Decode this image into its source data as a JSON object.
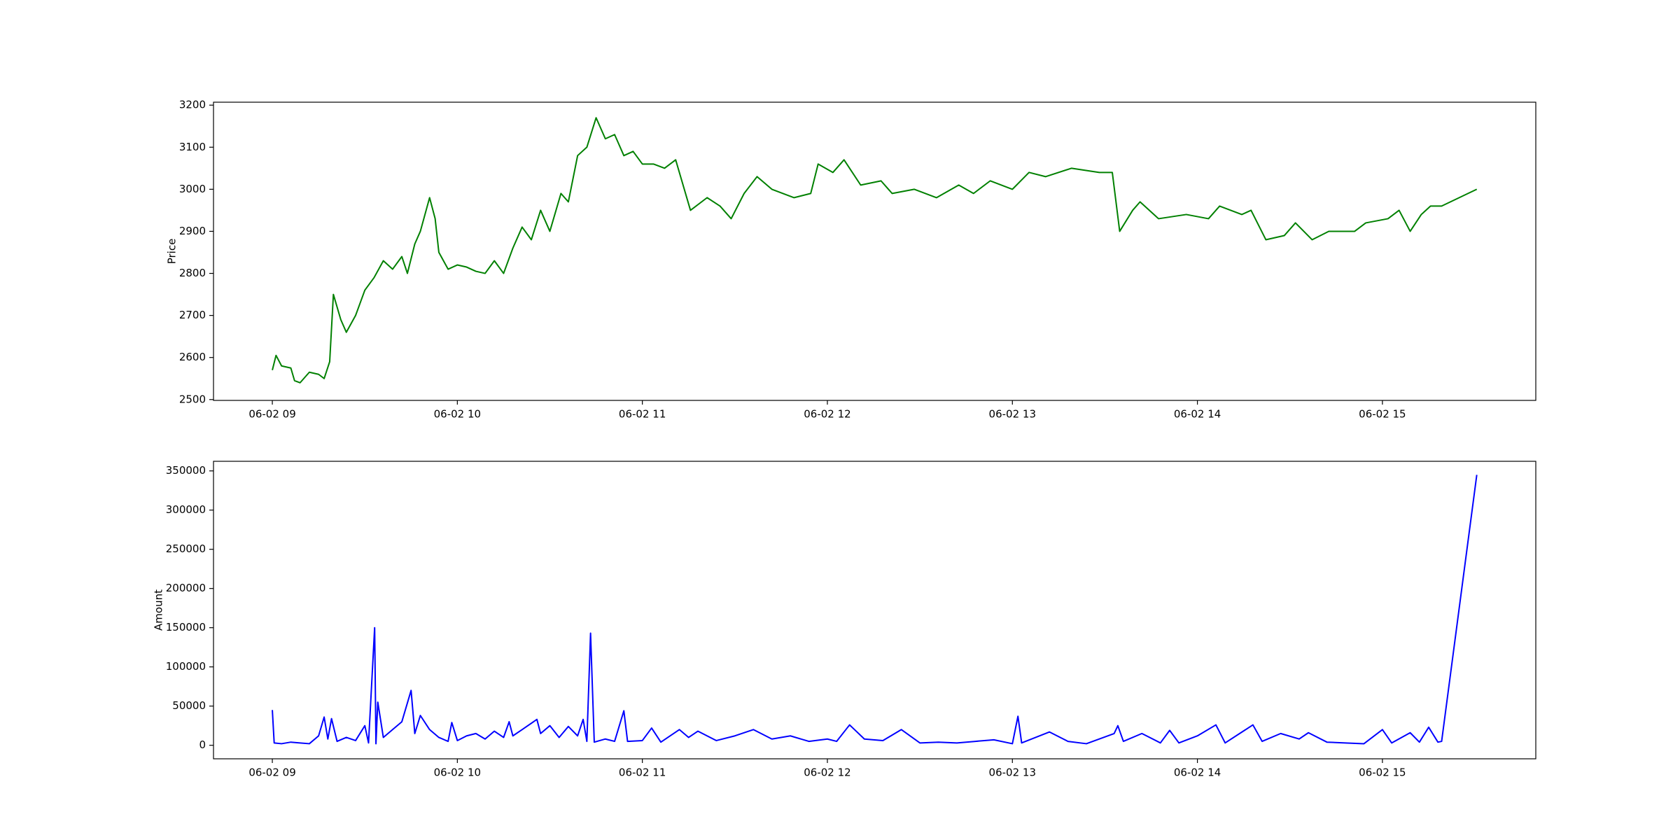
{
  "chart_data": [
    {
      "type": "line",
      "ylabel": "Price",
      "color": "#008000",
      "x": [
        9.0,
        9.02,
        9.05,
        9.1,
        9.12,
        9.15,
        9.2,
        9.25,
        9.28,
        9.31,
        9.33,
        9.37,
        9.4,
        9.45,
        9.5,
        9.55,
        9.6,
        9.65,
        9.7,
        9.73,
        9.77,
        9.8,
        9.85,
        9.88,
        9.9,
        9.95,
        10.0,
        10.05,
        10.1,
        10.15,
        10.2,
        10.25,
        10.3,
        10.35,
        10.4,
        10.45,
        10.5,
        10.56,
        10.6,
        10.65,
        10.7,
        10.75,
        10.8,
        10.85,
        10.9,
        10.95,
        11.0,
        11.06,
        11.12,
        11.18,
        11.26,
        11.35,
        11.42,
        11.48,
        11.55,
        11.62,
        11.7,
        11.82,
        11.91,
        11.95,
        12.03,
        12.09,
        12.18,
        12.29,
        12.35,
        12.47,
        12.59,
        12.71,
        12.79,
        12.88,
        13.0,
        13.09,
        13.18,
        13.32,
        13.47,
        13.54,
        13.58,
        13.65,
        13.69,
        13.79,
        13.94,
        14.06,
        14.12,
        14.24,
        14.29,
        14.37,
        14.47,
        14.53,
        14.62,
        14.71,
        14.85,
        14.91,
        15.03,
        15.09,
        15.15,
        15.21,
        15.26,
        15.32,
        15.51
      ],
      "values": [
        2570,
        2605,
        2580,
        2575,
        2545,
        2540,
        2565,
        2560,
        2550,
        2590,
        2750,
        2690,
        2660,
        2700,
        2760,
        2790,
        2830,
        2810,
        2840,
        2800,
        2870,
        2900,
        2980,
        2930,
        2850,
        2810,
        2820,
        2815,
        2805,
        2800,
        2830,
        2800,
        2860,
        2910,
        2880,
        2950,
        2900,
        2990,
        2970,
        3080,
        3100,
        3170,
        3120,
        3130,
        3080,
        3090,
        3060,
        3060,
        3050,
        3070,
        2950,
        2980,
        2960,
        2930,
        2990,
        3030,
        3000,
        2980,
        2990,
        3060,
        3040,
        3070,
        3010,
        3020,
        2990,
        3000,
        2980,
        3010,
        2990,
        3020,
        3000,
        3040,
        3030,
        3050,
        3040,
        3040,
        2900,
        2950,
        2970,
        2930,
        2940,
        2930,
        2960,
        2940,
        2950,
        2880,
        2890,
        2920,
        2880,
        2900,
        2900,
        2920,
        2930,
        2950,
        2900,
        2940,
        2960,
        2960,
        3000
      ],
      "xlim": [
        8.682,
        15.829
      ],
      "ylim": [
        2498,
        3207
      ],
      "xticks": [
        {
          "value": 9,
          "label": "06-02 09"
        },
        {
          "value": 10,
          "label": "06-02 10"
        },
        {
          "value": 11,
          "label": "06-02 11"
        },
        {
          "value": 12,
          "label": "06-02 12"
        },
        {
          "value": 13,
          "label": "06-02 13"
        },
        {
          "value": 14,
          "label": "06-02 14"
        },
        {
          "value": 15,
          "label": "06-02 15"
        }
      ],
      "yticks": [
        2500,
        2600,
        2700,
        2800,
        2900,
        3000,
        3100,
        3200
      ]
    },
    {
      "type": "line",
      "ylabel": "Amount",
      "color": "#0000ff",
      "x": [
        9.0,
        9.01,
        9.05,
        9.1,
        9.15,
        9.2,
        9.25,
        9.28,
        9.3,
        9.32,
        9.35,
        9.4,
        9.45,
        9.5,
        9.52,
        9.553,
        9.56,
        9.57,
        9.6,
        9.65,
        9.7,
        9.75,
        9.77,
        9.8,
        9.85,
        9.9,
        9.95,
        9.97,
        10.0,
        10.05,
        10.1,
        10.15,
        10.2,
        10.25,
        10.28,
        10.3,
        10.35,
        10.43,
        10.45,
        10.5,
        10.55,
        10.6,
        10.65,
        10.68,
        10.7,
        10.72,
        10.74,
        10.8,
        10.85,
        10.9,
        10.92,
        11.0,
        11.05,
        11.1,
        11.2,
        11.25,
        11.3,
        11.4,
        11.5,
        11.6,
        11.7,
        11.8,
        11.9,
        12.0,
        12.05,
        12.12,
        12.2,
        12.3,
        12.4,
        12.5,
        12.6,
        12.7,
        12.8,
        12.9,
        13.0,
        13.03,
        13.05,
        13.2,
        13.3,
        13.4,
        13.55,
        13.57,
        13.6,
        13.7,
        13.8,
        13.85,
        13.9,
        14.0,
        14.1,
        14.15,
        14.3,
        14.35,
        14.45,
        14.55,
        14.6,
        14.7,
        14.8,
        14.9,
        15.0,
        15.05,
        15.15,
        15.2,
        15.25,
        15.3,
        15.32,
        15.51
      ],
      "values": [
        45000,
        3000,
        2000,
        4000,
        3000,
        2000,
        12000,
        36000,
        8000,
        34000,
        5000,
        10000,
        6000,
        25000,
        3000,
        150000,
        2000,
        55000,
        10000,
        20000,
        30000,
        70000,
        15000,
        38000,
        20000,
        10000,
        5000,
        29000,
        6000,
        12000,
        15000,
        8000,
        18000,
        10000,
        30000,
        12000,
        20000,
        33000,
        15000,
        25000,
        10000,
        24000,
        12000,
        33000,
        5000,
        143000,
        4000,
        8000,
        5000,
        44000,
        5000,
        6000,
        22000,
        4000,
        20000,
        10000,
        18000,
        6000,
        12000,
        20000,
        8000,
        12000,
        5000,
        8000,
        5000,
        26000,
        8000,
        6000,
        20000,
        3000,
        4000,
        3000,
        5000,
        7000,
        2000,
        37000,
        3000,
        17000,
        5000,
        2000,
        15000,
        25000,
        5000,
        15000,
        3000,
        19000,
        3000,
        12000,
        26000,
        3000,
        26000,
        5000,
        15000,
        8000,
        16000,
        4000,
        3000,
        2000,
        20000,
        3000,
        16000,
        4000,
        23000,
        4000,
        5000,
        345000
      ],
      "xlim": [
        8.682,
        15.829
      ],
      "ylim": [
        -17250,
        362250
      ],
      "xticks": [
        {
          "value": 9,
          "label": "06-02 09"
        },
        {
          "value": 10,
          "label": "06-02 10"
        },
        {
          "value": 11,
          "label": "06-02 11"
        },
        {
          "value": 12,
          "label": "06-02 12"
        },
        {
          "value": 13,
          "label": "06-02 13"
        },
        {
          "value": 14,
          "label": "06-02 14"
        },
        {
          "value": 15,
          "label": "06-02 15"
        }
      ],
      "yticks": [
        0,
        50000,
        100000,
        150000,
        200000,
        250000,
        300000,
        350000
      ]
    }
  ]
}
